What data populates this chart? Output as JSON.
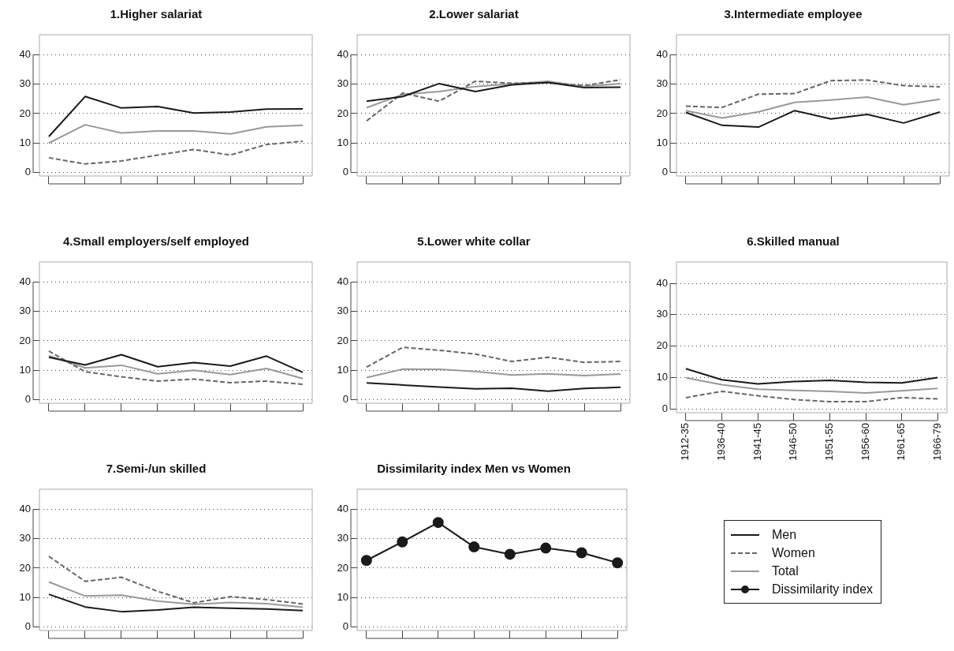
{
  "chart_data": [
    {
      "type": "line",
      "title": "1.Higher salariat",
      "legend": "bottom right",
      "categories": [
        null,
        null,
        null,
        null,
        null,
        null,
        null,
        null
      ],
      "ylim": [
        -1.2,
        46.8
      ],
      "yticks": [
        0,
        10,
        20,
        30,
        40
      ],
      "grid": "y",
      "tick_labels": "y",
      "series": [
        {
          "name": "Men",
          "color": "#1a1a1a",
          "values": [
            12.2,
            25.8,
            21.9,
            22.4,
            20.2,
            20.5,
            21.5,
            21.6
          ]
        },
        {
          "name": "Women",
          "color": "#666666",
          "line_style": "dashed",
          "values": [
            5.0,
            2.9,
            3.9,
            5.9,
            7.8,
            5.9,
            9.5,
            10.6
          ]
        },
        {
          "name": "Total",
          "color": "#999999",
          "values": [
            10.0,
            16.2,
            13.4,
            14.1,
            14.1,
            13.1,
            15.5,
            16.0
          ]
        }
      ]
    },
    {
      "type": "line",
      "title": "2.Lower salariat",
      "categories": [
        null,
        null,
        null,
        null,
        null,
        null,
        null,
        null
      ],
      "ylim": [
        -1.2,
        46.8
      ],
      "yticks": [
        0,
        10,
        20,
        30,
        40
      ],
      "grid": "y",
      "tick_labels": "y",
      "series": [
        {
          "color": "#1a1a1a",
          "values": [
            24.2,
            25.8,
            30.2,
            27.5,
            29.8,
            30.6,
            28.8,
            29.0
          ]
        },
        {
          "color": "#666666",
          "line_style": "dashed",
          "values": [
            17.5,
            27.0,
            24.2,
            31.0,
            30.3,
            30.5,
            29.5,
            31.5
          ]
        },
        {
          "color": "#999999",
          "values": [
            22.0,
            26.5,
            27.5,
            29.2,
            30.1,
            31.0,
            29.2,
            30.2
          ]
        }
      ]
    },
    {
      "type": "line",
      "title": "3.Intermediate employee",
      "categories": [
        null,
        null,
        null,
        null,
        null,
        null,
        null,
        null
      ],
      "ylim": [
        -1.2,
        46.8
      ],
      "yticks": [
        0,
        10,
        20,
        30,
        40
      ],
      "grid": "y",
      "tick_labels": "y",
      "series": [
        {
          "color": "#1a1a1a",
          "values": [
            20.4,
            16.0,
            15.4,
            21.0,
            18.2,
            19.7,
            16.8,
            20.5
          ]
        },
        {
          "color": "#666666",
          "line_style": "dashed",
          "values": [
            22.5,
            22.1,
            26.6,
            26.8,
            31.2,
            31.4,
            29.5,
            29.1
          ]
        },
        {
          "color": "#999999",
          "values": [
            21.0,
            18.5,
            20.6,
            23.8,
            24.6,
            25.6,
            23.0,
            24.9
          ]
        }
      ]
    },
    {
      "type": "line",
      "title": "4.Small employers/self employed",
      "categories": [
        null,
        null,
        null,
        null,
        null,
        null,
        null,
        null
      ],
      "ylim": [
        -1.2,
        46.8
      ],
      "yticks": [
        0,
        10,
        20,
        30,
        40
      ],
      "grid": "y",
      "tick_labels": "y",
      "series": [
        {
          "color": "#1a1a1a",
          "values": [
            14.4,
            11.8,
            15.3,
            11.2,
            12.6,
            11.4,
            14.8,
            9.3
          ]
        },
        {
          "color": "#666666",
          "line_style": "dashed",
          "values": [
            16.5,
            9.5,
            7.8,
            6.3,
            7.0,
            5.8,
            6.3,
            5.2
          ]
        },
        {
          "color": "#999999",
          "values": [
            15.0,
            10.8,
            11.7,
            8.8,
            10.0,
            8.5,
            10.6,
            7.2
          ]
        }
      ]
    },
    {
      "type": "line",
      "title": "5.Lower white collar",
      "categories": [
        null,
        null,
        null,
        null,
        null,
        null,
        null,
        null
      ],
      "ylim": [
        -1.2,
        46.8
      ],
      "yticks": [
        0,
        10,
        20,
        30,
        40
      ],
      "grid": "y",
      "tick_labels": "y",
      "series": [
        {
          "color": "#1a1a1a",
          "values": [
            5.7,
            5.0,
            4.3,
            3.7,
            3.9,
            2.9,
            3.8,
            4.2
          ]
        },
        {
          "color": "#666666",
          "line_style": "dashed",
          "values": [
            11.1,
            17.8,
            16.8,
            15.5,
            13.0,
            14.4,
            12.7,
            13.0
          ]
        },
        {
          "color": "#999999",
          "values": [
            7.5,
            10.4,
            10.3,
            9.6,
            8.4,
            8.8,
            8.2,
            8.7
          ]
        }
      ]
    },
    {
      "type": "line",
      "title": "6.Skilled manual",
      "categories": [
        "1912-35",
        "1936-40",
        "1941-45",
        "1946-50",
        "1951-55",
        "1956-60",
        "1961-65",
        "1966-79"
      ],
      "ylim": [
        -1.2,
        46.8
      ],
      "yticks": [
        0,
        10,
        20,
        30,
        40
      ],
      "grid": "y",
      "series": [
        {
          "color": "#1a1a1a",
          "values": [
            12.8,
            9.3,
            8.0,
            8.7,
            9.1,
            8.5,
            8.3,
            10.0
          ]
        },
        {
          "color": "#666666",
          "line_style": "dashed",
          "values": [
            3.6,
            5.6,
            4.2,
            3.0,
            2.3,
            2.3,
            3.6,
            3.2
          ]
        },
        {
          "color": "#999999",
          "values": [
            9.9,
            7.7,
            6.3,
            5.9,
            5.6,
            5.1,
            5.8,
            6.5
          ]
        }
      ]
    },
    {
      "type": "line",
      "title": "7.Semi-/un skilled",
      "categories": [
        null,
        null,
        null,
        null,
        null,
        null,
        null,
        null
      ],
      "ylim": [
        -1.2,
        46.8
      ],
      "yticks": [
        0,
        10,
        20,
        30,
        40
      ],
      "grid": "y",
      "tick_labels": "y",
      "series": [
        {
          "color": "#1a1a1a",
          "values": [
            11.1,
            6.8,
            5.2,
            5.8,
            6.7,
            6.4,
            6.1,
            5.6
          ]
        },
        {
          "color": "#666666",
          "line_style": "dashed",
          "values": [
            24.0,
            15.5,
            16.9,
            12.1,
            8.2,
            10.3,
            9.3,
            7.8
          ]
        },
        {
          "color": "#999999",
          "values": [
            15.3,
            10.5,
            10.8,
            8.8,
            7.7,
            8.3,
            7.9,
            6.7
          ]
        }
      ]
    },
    {
      "type": "line",
      "title": "Dissimilarity index Men vs Women",
      "categories": [
        null,
        null,
        null,
        null,
        null,
        null,
        null,
        null
      ],
      "ylim": [
        -1.2,
        46.8
      ],
      "yticks": [
        0,
        10,
        20,
        30,
        40
      ],
      "grid": "y",
      "tick_labels": "y",
      "marker": "circle",
      "legend": "right",
      "series": [
        {
          "name": "Dissimilarity index",
          "color": "#1a1a1a",
          "values": [
            22.6,
            28.9,
            35.5,
            27.2,
            24.7,
            26.8,
            25.2,
            21.8
          ]
        }
      ]
    }
  ]
}
